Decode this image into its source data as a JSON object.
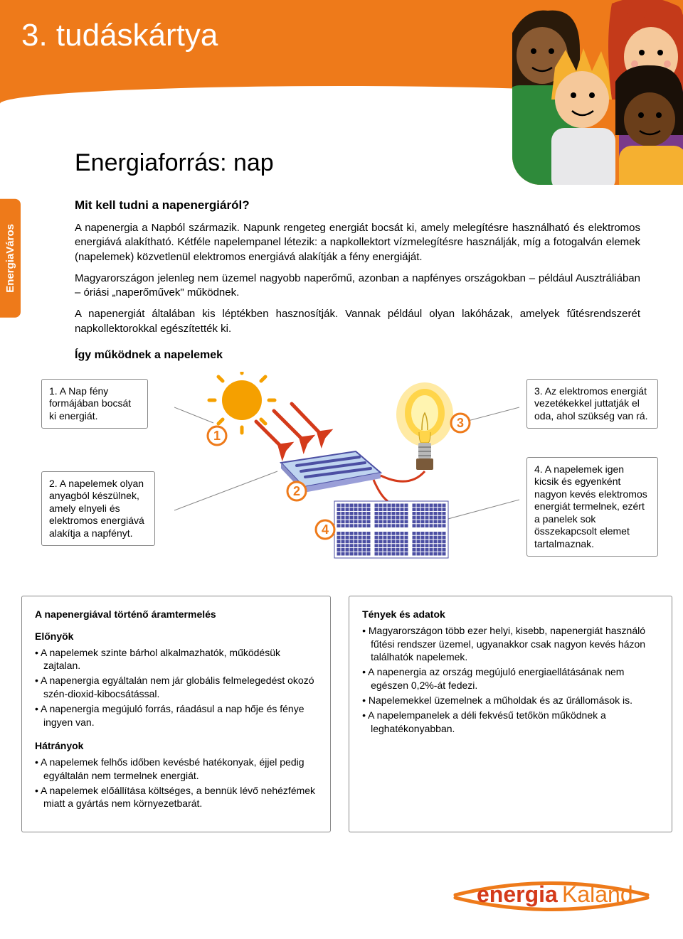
{
  "colors": {
    "accent": "#ee7a1a",
    "panel": "#4c4fa3",
    "sun": "#f5a000",
    "bulb_glow": "#ffd54a",
    "white": "#ffffff",
    "text": "#000000",
    "border": "#888888"
  },
  "header": {
    "card_title": "3. tudáskártya",
    "side_tab": "EnergiaVáros"
  },
  "content": {
    "main_heading": "Energiaforrás: nap",
    "sub_heading": "Mit kell tudni a napenergiáról?",
    "paragraph_1": "A napenergia a Napból származik. Napunk rengeteg energiát bocsát ki, amely melegítésre használható és elektromos energiává alakítható. Kétféle napelempanel létezik: a napkollektort vízmelegítésre használják, míg a fotogalván elemek (napelemek) közvetlenül elektromos energiává alakítják a fény energiáját.",
    "paragraph_2": "Magyarországon jelenleg nem üzemel nagyobb naperőmű, azonban a napfényes országokban – például Ausztráliában – óriási „naperőművek\" működnek.",
    "paragraph_3": "A napenergiát általában kis léptékben hasznosítják. Vannak például olyan lakóházak, amelyek fűtésrendszerét napkollektorokkal egészítették ki.",
    "how_heading": "Így működnek a napelemek"
  },
  "diagram": {
    "callouts": {
      "c1": "1. A Nap fény formájában bocsát ki energiát.",
      "c2": "2. A napelemek olyan anyagból készülnek, amely elnyeli és elektromos energiává alakítja a napfényt.",
      "c3": "3. Az elektromos energiát vezetékekkel juttatják el oda, ahol szükség van rá.",
      "c4": "4. A napelemek igen kicsik és egyenként nagyon kevés elektromos energiát termelnek, ezért a panelek sok összekapcsolt elemet tartalmaznak."
    },
    "numbers": [
      "1",
      "2",
      "3",
      "4"
    ]
  },
  "info_left": {
    "title": "A napenergiával történő áramtermelés",
    "adv_label": "Előnyök",
    "adv_items": [
      "A napelemek szinte bárhol alkalmazhatók, működésük zajtalan.",
      "A napenergia egyáltalán nem jár globális felmelegedést okozó szén-dioxid-kibocsátással.",
      "A napenergia megújuló forrás, ráadásul a nap hője és fénye ingyen van."
    ],
    "dis_label": "Hátrányok",
    "dis_items": [
      "A napelemek felhős időben kevésbé hatékonyak, éjjel pedig egyáltalán nem termelnek energiát.",
      "A napelemek előállítása költséges, a bennük lévő nehézfémek miatt a gyártás nem környezetbarát."
    ]
  },
  "info_right": {
    "title": "Tények és adatok",
    "items": [
      "Magyarországon több ezer helyi, kisebb, napenergiát használó fűtési rendszer üzemel, ugyanakkor csak nagyon kevés házon találhatók napelemek.",
      "A napenergia az ország megújuló energiaellátásának nem egészen 0,2%-át fedezi.",
      "Napelemekkel üzemelnek a műholdak és az űrállomások is.",
      "A napelempanelek a déli fekvésű tetőkön működnek a leghatékonyabban."
    ]
  },
  "logo": {
    "part1": "energia",
    "part2": "Kaland"
  }
}
